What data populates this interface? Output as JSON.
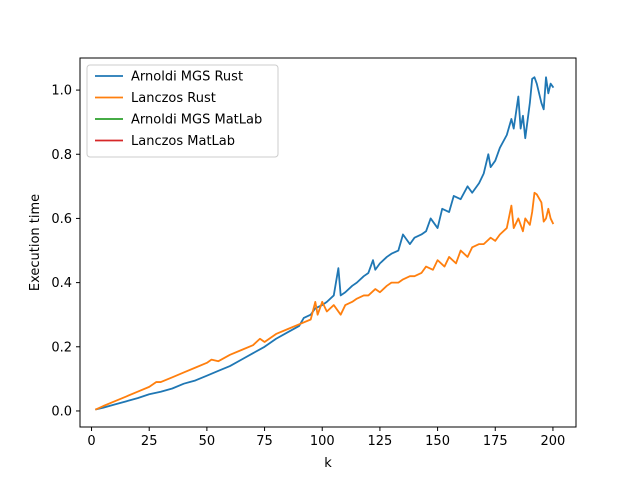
{
  "chart_data": {
    "type": "line",
    "title": "",
    "xlabel": "k",
    "ylabel": "Execution time",
    "xlim": [
      -5,
      210
    ],
    "ylim": [
      -0.05,
      1.1
    ],
    "xticks": [
      0,
      25,
      50,
      75,
      100,
      125,
      150,
      175,
      200
    ],
    "xtick_labels": [
      "0",
      "25",
      "50",
      "75",
      "100",
      "125",
      "150",
      "175",
      "200"
    ],
    "yticks": [
      0.0,
      0.2,
      0.4,
      0.6,
      0.8,
      1.0
    ],
    "ytick_labels": [
      "0.0",
      "0.2",
      "0.4",
      "0.6",
      "0.8",
      "1.0"
    ],
    "grid": false,
    "legend_position": "top-left",
    "series": [
      {
        "name": "Arnoldi MGS Rust",
        "color": "#1f77b4",
        "x": [
          2,
          5,
          10,
          15,
          20,
          25,
          30,
          35,
          40,
          45,
          50,
          55,
          60,
          65,
          70,
          75,
          80,
          85,
          90,
          92,
          95,
          97,
          100,
          102,
          105,
          107,
          108,
          110,
          113,
          115,
          118,
          120,
          122,
          123,
          125,
          128,
          130,
          133,
          135,
          138,
          140,
          143,
          145,
          147,
          150,
          152,
          155,
          157,
          160,
          163,
          165,
          168,
          170,
          172,
          173,
          175,
          177,
          180,
          182,
          183,
          185,
          186,
          187,
          188,
          190,
          191,
          192,
          193,
          195,
          196,
          197,
          198,
          199,
          200
        ],
        "values": [
          0.005,
          0.01,
          0.02,
          0.03,
          0.04,
          0.052,
          0.06,
          0.07,
          0.085,
          0.095,
          0.11,
          0.125,
          0.14,
          0.16,
          0.18,
          0.2,
          0.225,
          0.245,
          0.265,
          0.29,
          0.3,
          0.32,
          0.33,
          0.34,
          0.36,
          0.445,
          0.36,
          0.37,
          0.39,
          0.4,
          0.42,
          0.43,
          0.47,
          0.44,
          0.46,
          0.48,
          0.49,
          0.5,
          0.55,
          0.52,
          0.54,
          0.55,
          0.56,
          0.6,
          0.57,
          0.63,
          0.62,
          0.67,
          0.66,
          0.7,
          0.68,
          0.71,
          0.74,
          0.8,
          0.76,
          0.78,
          0.82,
          0.86,
          0.91,
          0.88,
          0.98,
          0.88,
          0.92,
          0.85,
          0.96,
          1.035,
          1.04,
          1.02,
          0.96,
          0.94,
          1.04,
          0.99,
          1.02,
          1.01
        ]
      },
      {
        "name": "Lanczos Rust",
        "color": "#ff7f0e",
        "x": [
          2,
          5,
          10,
          15,
          20,
          25,
          28,
          30,
          35,
          40,
          45,
          50,
          52,
          55,
          60,
          65,
          70,
          73,
          75,
          80,
          85,
          90,
          95,
          97,
          98,
          100,
          102,
          105,
          108,
          110,
          113,
          115,
          118,
          120,
          123,
          125,
          128,
          130,
          133,
          135,
          138,
          140,
          143,
          145,
          148,
          150,
          153,
          155,
          158,
          160,
          163,
          165,
          168,
          170,
          173,
          175,
          177,
          180,
          182,
          183,
          185,
          187,
          188,
          190,
          191,
          192,
          193,
          195,
          196,
          197,
          198,
          199,
          200
        ],
        "values": [
          0.005,
          0.015,
          0.03,
          0.045,
          0.06,
          0.075,
          0.09,
          0.09,
          0.105,
          0.12,
          0.135,
          0.15,
          0.16,
          0.155,
          0.175,
          0.19,
          0.205,
          0.225,
          0.215,
          0.24,
          0.255,
          0.27,
          0.285,
          0.34,
          0.3,
          0.34,
          0.31,
          0.33,
          0.3,
          0.33,
          0.34,
          0.35,
          0.36,
          0.36,
          0.38,
          0.37,
          0.39,
          0.4,
          0.4,
          0.41,
          0.42,
          0.42,
          0.43,
          0.45,
          0.44,
          0.47,
          0.45,
          0.48,
          0.46,
          0.5,
          0.48,
          0.51,
          0.52,
          0.52,
          0.54,
          0.53,
          0.55,
          0.57,
          0.64,
          0.57,
          0.6,
          0.56,
          0.6,
          0.58,
          0.62,
          0.68,
          0.675,
          0.65,
          0.59,
          0.6,
          0.63,
          0.6,
          0.585
        ]
      },
      {
        "name": "Arnoldi MGS MatLab",
        "color": "#2ca02c",
        "x": [],
        "values": []
      },
      {
        "name": "Lanczos MatLab",
        "color": "#d62728",
        "x": [],
        "values": []
      }
    ]
  }
}
